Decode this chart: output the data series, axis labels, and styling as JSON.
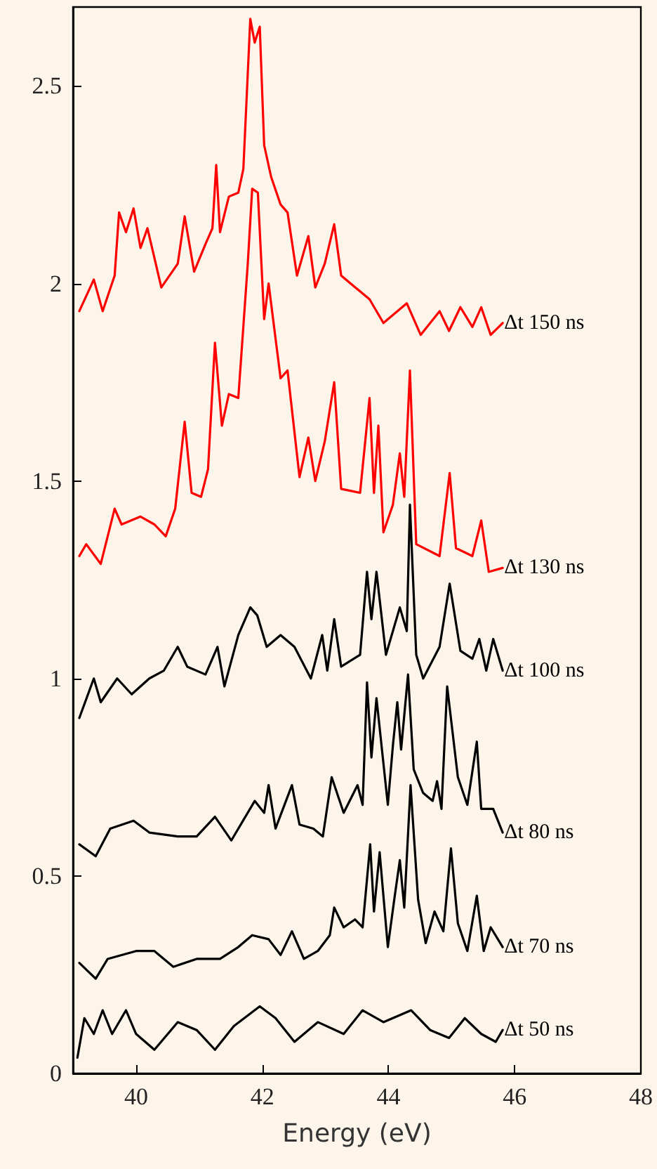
{
  "chart_data": {
    "type": "line",
    "xlabel": "Energy (eV)",
    "xlim": [
      39,
      48
    ],
    "xticks": [
      40,
      42,
      44,
      46,
      48
    ],
    "ylim": [
      0,
      2.7
    ],
    "yticks": [
      0,
      0.5,
      1,
      1.5,
      2,
      2.5
    ],
    "grid": false,
    "legend": false,
    "marker": "none",
    "line_style": "solid",
    "series": [
      {
        "name": "Δt 150 ns",
        "color": "#ff0000",
        "x": [
          39.1,
          39.33,
          39.47,
          39.66,
          39.73,
          39.84,
          39.96,
          40.07,
          40.18,
          40.4,
          40.66,
          40.77,
          40.92,
          41.1,
          41.21,
          41.27,
          41.33,
          41.47,
          41.62,
          41.7,
          41.81,
          41.88,
          41.96,
          42.03,
          42.14,
          42.29,
          42.4,
          42.55,
          42.73,
          42.84,
          42.99,
          43.14,
          43.25,
          43.55,
          43.7,
          43.92,
          44.29,
          44.51,
          44.81,
          44.96,
          45.14,
          45.33,
          45.47,
          45.62,
          45.81
        ],
        "values": [
          1.93,
          2.01,
          1.93,
          2.02,
          2.18,
          2.13,
          2.19,
          2.09,
          2.14,
          1.99,
          2.05,
          2.17,
          2.03,
          2.1,
          2.14,
          2.3,
          2.13,
          2.22,
          2.23,
          2.29,
          2.67,
          2.61,
          2.65,
          2.35,
          2.27,
          2.2,
          2.18,
          2.02,
          2.12,
          1.99,
          2.05,
          2.15,
          2.02,
          1.98,
          1.96,
          1.9,
          1.95,
          1.87,
          1.93,
          1.88,
          1.94,
          1.89,
          1.94,
          1.87,
          1.9
        ]
      },
      {
        "name": "Δt 130 ns",
        "color": "#ff0000",
        "x": [
          39.1,
          39.21,
          39.44,
          39.66,
          39.77,
          40.07,
          40.29,
          40.47,
          40.62,
          40.77,
          40.88,
          41.03,
          41.14,
          41.25,
          41.36,
          41.47,
          41.62,
          41.77,
          41.84,
          41.93,
          42.03,
          42.1,
          42.29,
          42.4,
          42.59,
          42.73,
          42.84,
          42.99,
          43.14,
          43.25,
          43.55,
          43.7,
          43.77,
          43.84,
          43.92,
          44.07,
          44.18,
          44.25,
          44.34,
          44.44,
          44.81,
          44.97,
          45.07,
          45.33,
          45.47,
          45.59,
          45.81
        ],
        "values": [
          1.31,
          1.34,
          1.29,
          1.43,
          1.39,
          1.41,
          1.39,
          1.36,
          1.43,
          1.65,
          1.47,
          1.46,
          1.53,
          1.85,
          1.64,
          1.72,
          1.71,
          2.05,
          2.24,
          2.23,
          1.91,
          2.0,
          1.76,
          1.78,
          1.51,
          1.61,
          1.5,
          1.6,
          1.75,
          1.48,
          1.47,
          1.71,
          1.47,
          1.64,
          1.37,
          1.44,
          1.57,
          1.46,
          1.78,
          1.34,
          1.31,
          1.52,
          1.33,
          1.31,
          1.4,
          1.27,
          1.28
        ]
      },
      {
        "name": "Δt 100 ns",
        "color": "#000000",
        "x": [
          39.1,
          39.33,
          39.44,
          39.7,
          39.93,
          40.21,
          40.44,
          40.66,
          40.81,
          41.1,
          41.29,
          41.4,
          41.62,
          41.81,
          41.92,
          42.07,
          42.29,
          42.51,
          42.77,
          42.95,
          43.03,
          43.14,
          43.25,
          43.55,
          43.66,
          43.73,
          43.81,
          43.96,
          44.18,
          44.29,
          44.34,
          44.44,
          44.55,
          44.81,
          44.97,
          45.14,
          45.33,
          45.44,
          45.55,
          45.66,
          45.81
        ],
        "values": [
          0.9,
          1.0,
          0.94,
          1.0,
          0.96,
          1.0,
          1.02,
          1.08,
          1.03,
          1.01,
          1.08,
          0.98,
          1.11,
          1.18,
          1.16,
          1.08,
          1.11,
          1.08,
          1.0,
          1.11,
          1.02,
          1.15,
          1.03,
          1.06,
          1.27,
          1.15,
          1.27,
          1.06,
          1.18,
          1.12,
          1.44,
          1.06,
          1.0,
          1.08,
          1.24,
          1.07,
          1.05,
          1.1,
          1.02,
          1.1,
          1.02
        ]
      },
      {
        "name": "Δt 80 ns",
        "color": "#000000",
        "x": [
          39.1,
          39.36,
          39.59,
          39.96,
          40.21,
          40.66,
          40.96,
          41.25,
          41.51,
          41.88,
          42.03,
          42.1,
          42.21,
          42.47,
          42.59,
          42.81,
          42.96,
          43.1,
          43.29,
          43.51,
          43.59,
          43.66,
          43.73,
          43.81,
          43.99,
          44.07,
          44.14,
          44.2,
          44.31,
          44.4,
          44.55,
          44.7,
          44.77,
          44.84,
          44.93,
          45.1,
          45.25,
          45.4,
          45.47,
          45.66,
          45.81
        ],
        "values": [
          0.58,
          0.55,
          0.62,
          0.64,
          0.61,
          0.6,
          0.6,
          0.65,
          0.59,
          0.69,
          0.66,
          0.73,
          0.62,
          0.73,
          0.63,
          0.62,
          0.6,
          0.75,
          0.66,
          0.73,
          0.68,
          0.99,
          0.8,
          0.95,
          0.68,
          0.83,
          0.94,
          0.82,
          1.01,
          0.77,
          0.71,
          0.69,
          0.74,
          0.67,
          0.98,
          0.75,
          0.68,
          0.84,
          0.67,
          0.67,
          0.61
        ]
      },
      {
        "name": "Δt 70 ns",
        "color": "#000000",
        "x": [
          39.1,
          39.36,
          39.55,
          40.0,
          40.29,
          40.59,
          40.96,
          41.33,
          41.62,
          41.84,
          42.1,
          42.29,
          42.47,
          42.66,
          42.88,
          43.07,
          43.14,
          43.29,
          43.47,
          43.59,
          43.71,
          43.77,
          43.86,
          43.99,
          44.1,
          44.18,
          44.25,
          44.35,
          44.47,
          44.59,
          44.73,
          44.87,
          44.99,
          45.1,
          45.25,
          45.4,
          45.51,
          45.62,
          45.81
        ],
        "values": [
          0.28,
          0.24,
          0.29,
          0.31,
          0.31,
          0.27,
          0.29,
          0.29,
          0.32,
          0.35,
          0.34,
          0.3,
          0.36,
          0.29,
          0.31,
          0.35,
          0.42,
          0.37,
          0.39,
          0.37,
          0.58,
          0.41,
          0.56,
          0.32,
          0.45,
          0.54,
          0.42,
          0.73,
          0.44,
          0.33,
          0.41,
          0.36,
          0.57,
          0.38,
          0.31,
          0.45,
          0.31,
          0.37,
          0.32
        ]
      },
      {
        "name": "Δt 50 ns",
        "color": "#000000",
        "x": [
          39.07,
          39.18,
          39.33,
          39.47,
          39.62,
          39.84,
          40.0,
          40.29,
          40.66,
          40.96,
          41.25,
          41.55,
          41.96,
          42.21,
          42.51,
          42.88,
          43.29,
          43.59,
          43.92,
          44.36,
          44.66,
          44.96,
          45.21,
          45.47,
          45.7,
          45.81
        ],
        "values": [
          0.04,
          0.14,
          0.1,
          0.16,
          0.1,
          0.16,
          0.1,
          0.06,
          0.13,
          0.11,
          0.06,
          0.12,
          0.17,
          0.14,
          0.08,
          0.13,
          0.1,
          0.16,
          0.13,
          0.16,
          0.11,
          0.09,
          0.14,
          0.1,
          0.08,
          0.11
        ]
      }
    ]
  }
}
